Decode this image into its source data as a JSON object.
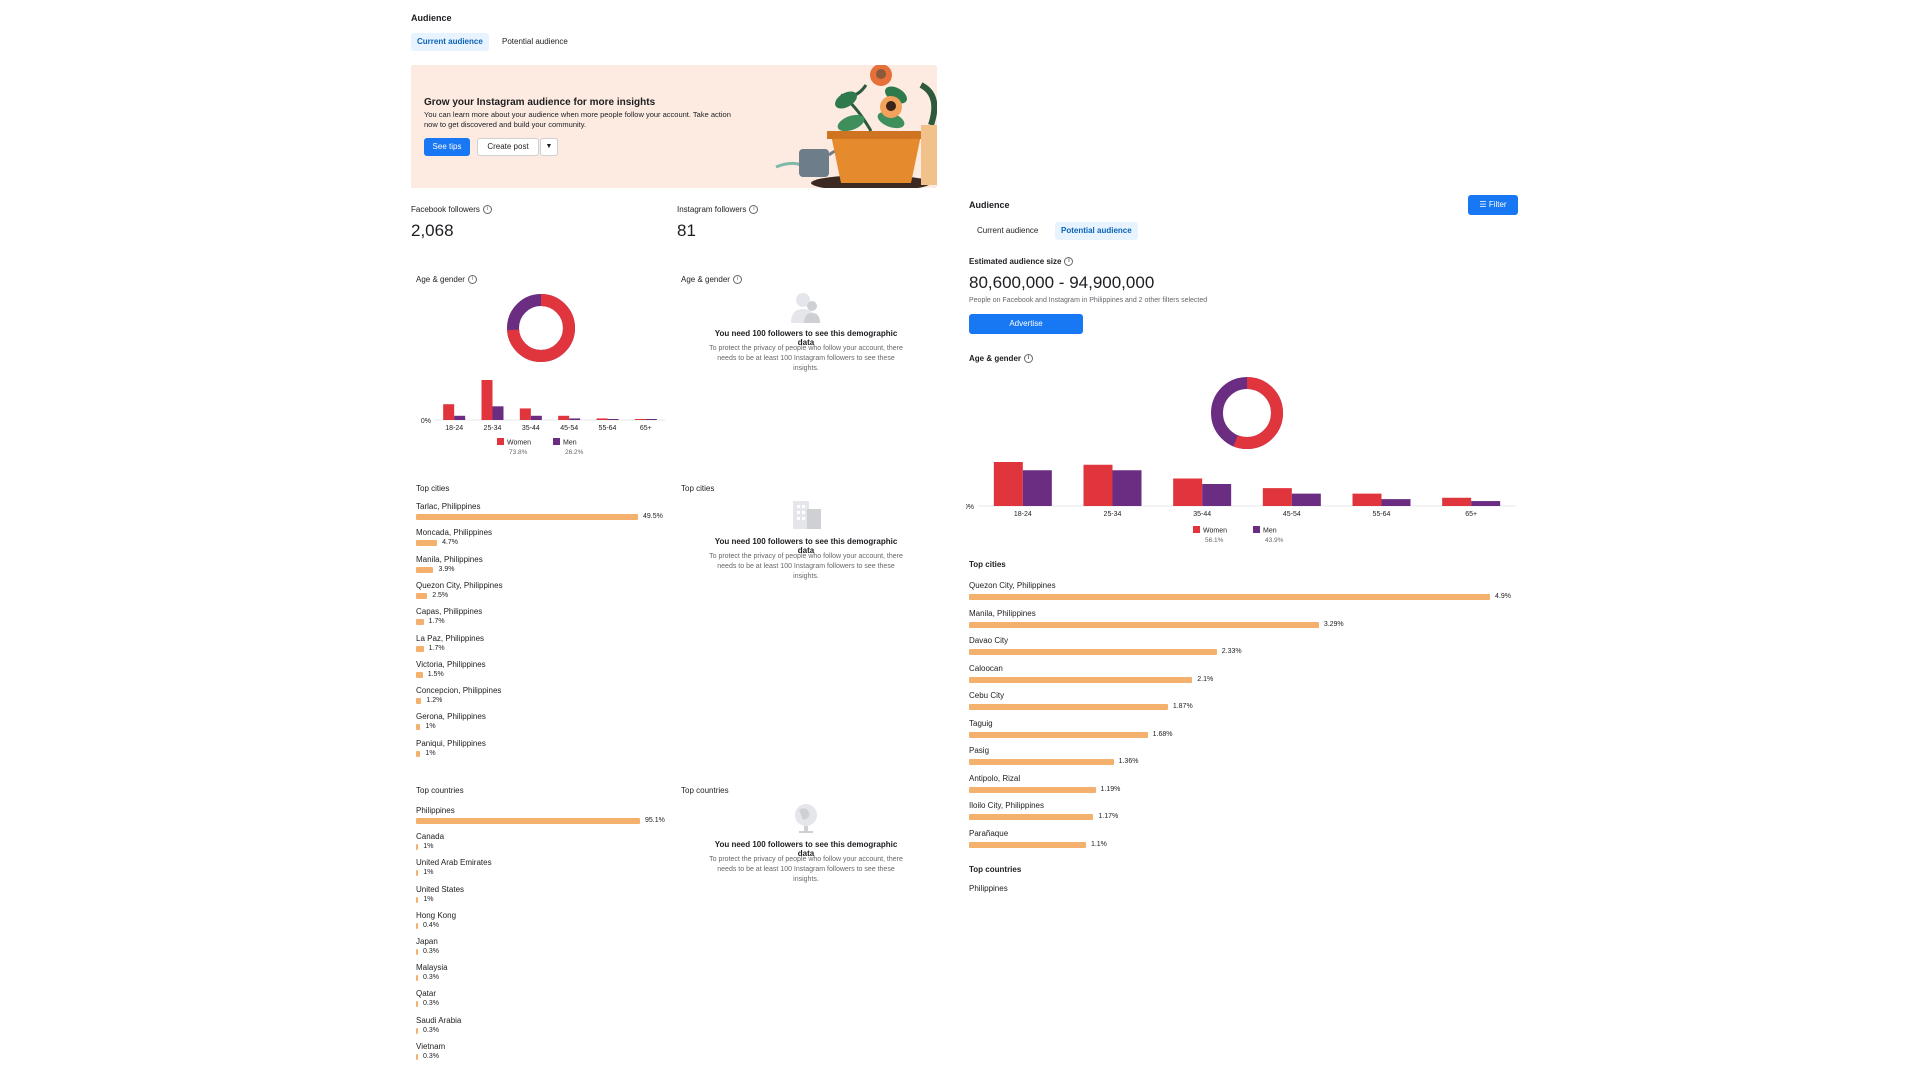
{
  "left": {
    "title": "Audience",
    "tabs": [
      "Current audience",
      "Potential audience"
    ],
    "banner": {
      "title": "Grow your Instagram audience for more insights",
      "desc": "You can learn more about your audience when more people follow your account. Take action now to get discovered and build your community.",
      "primary": "See tips",
      "secondary": "Create post"
    },
    "fb_followers_label": "Facebook followers",
    "fb_followers": "2,068",
    "ig_followers_label": "Instagram followers",
    "ig_followers": "81",
    "age_gender_label": "Age & gender",
    "age_chart": {
      "categories": [
        "18-24",
        "25-34",
        "35-44",
        "45-54",
        "55-64",
        "65+"
      ],
      "women": [
        15,
        38,
        11,
        4,
        1.5,
        0.8
      ],
      "men": [
        4,
        13,
        4,
        1.5,
        0.8,
        0.5
      ],
      "zero_label": "0%",
      "legend": [
        {
          "name": "Women",
          "pct": "73.8%"
        },
        {
          "name": "Men",
          "pct": "26.2%"
        }
      ],
      "donut_women_pct": 73.8
    },
    "top_cities_label": "Top cities",
    "cities": [
      {
        "name": "Tarlac, Philippines",
        "pct": "49.5%",
        "v": 49.5
      },
      {
        "name": "Moncada, Philippines",
        "pct": "4.7%",
        "v": 4.7
      },
      {
        "name": "Manila, Philippines",
        "pct": "3.9%",
        "v": 3.9
      },
      {
        "name": "Quezon City, Philippines",
        "pct": "2.5%",
        "v": 2.5
      },
      {
        "name": "Capas, Philippines",
        "pct": "1.7%",
        "v": 1.7
      },
      {
        "name": "La Paz, Philippines",
        "pct": "1.7%",
        "v": 1.7
      },
      {
        "name": "Victoria, Philippines",
        "pct": "1.5%",
        "v": 1.5
      },
      {
        "name": "Concepcion, Philippines",
        "pct": "1.2%",
        "v": 1.2
      },
      {
        "name": "Gerona, Philippines",
        "pct": "1%",
        "v": 1
      },
      {
        "name": "Paniqui, Philippines",
        "pct": "1%",
        "v": 1
      }
    ],
    "top_countries_label": "Top countries",
    "countries": [
      {
        "name": "Philippines",
        "pct": "95.1%",
        "v": 95.1
      },
      {
        "name": "Canada",
        "pct": "1%",
        "v": 1
      },
      {
        "name": "United Arab Emirates",
        "pct": "1%",
        "v": 1
      },
      {
        "name": "United States",
        "pct": "1%",
        "v": 1
      },
      {
        "name": "Hong Kong",
        "pct": "0.4%",
        "v": 0.4
      },
      {
        "name": "Japan",
        "pct": "0.3%",
        "v": 0.3
      },
      {
        "name": "Malaysia",
        "pct": "0.3%",
        "v": 0.3
      },
      {
        "name": "Qatar",
        "pct": "0.3%",
        "v": 0.3
      },
      {
        "name": "Saudi Arabia",
        "pct": "0.3%",
        "v": 0.3
      },
      {
        "name": "Vietnam",
        "pct": "0.3%",
        "v": 0.3
      }
    ],
    "ig_empty": {
      "title": "You need 100 followers to see this demographic data",
      "desc": "To protect the privacy of people who follow your account, there needs to be at least 100 Instagram followers to see these insights."
    }
  },
  "right": {
    "title": "Audience",
    "filter": "Filter",
    "tabs": [
      "Current audience",
      "Potential audience"
    ],
    "size_label": "Estimated audience size",
    "size": "80,600,000 - 94,900,000",
    "size_desc": "People on Facebook and Instagram in Philippines and 2 other filters selected",
    "advertise": "Advertise",
    "age_gender_label": "Age & gender",
    "age_chart": {
      "categories": [
        "18-24",
        "25-34",
        "35-44",
        "45-54",
        "55-64",
        "65+"
      ],
      "women": [
        16,
        15,
        10,
        6.5,
        4.5,
        3
      ],
      "men": [
        13,
        13,
        8,
        4.5,
        2.5,
        1.8
      ],
      "zero_label": "0%",
      "legend": [
        {
          "name": "Women",
          "pct": "56.1%"
        },
        {
          "name": "Men",
          "pct": "43.9%"
        }
      ],
      "donut_women_pct": 56.1
    },
    "top_cities_label": "Top cities",
    "cities": [
      {
        "name": "Quezon City, Philippines",
        "pct": "4.9%",
        "v": 4.9
      },
      {
        "name": "Manila, Philippines",
        "pct": "3.29%",
        "v": 3.29
      },
      {
        "name": "Davao City",
        "pct": "2.33%",
        "v": 2.33
      },
      {
        "name": "Caloocan",
        "pct": "2.1%",
        "v": 2.1
      },
      {
        "name": "Cebu City",
        "pct": "1.87%",
        "v": 1.87
      },
      {
        "name": "Taguig",
        "pct": "1.68%",
        "v": 1.68
      },
      {
        "name": "Pasig",
        "pct": "1.36%",
        "v": 1.36
      },
      {
        "name": "Antipolo, Rizal",
        "pct": "1.19%",
        "v": 1.19
      },
      {
        "name": "Iloilo City, Philippines",
        "pct": "1.17%",
        "v": 1.17
      },
      {
        "name": "Parañaque",
        "pct": "1.1%",
        "v": 1.1
      }
    ],
    "top_countries_label": "Top countries",
    "countries": [
      {
        "name": "Philippines"
      }
    ]
  },
  "colors": {
    "women": "#e0353d",
    "men": "#6b2d82",
    "bar": "#f4b16e",
    "blue": "#1877f2"
  }
}
